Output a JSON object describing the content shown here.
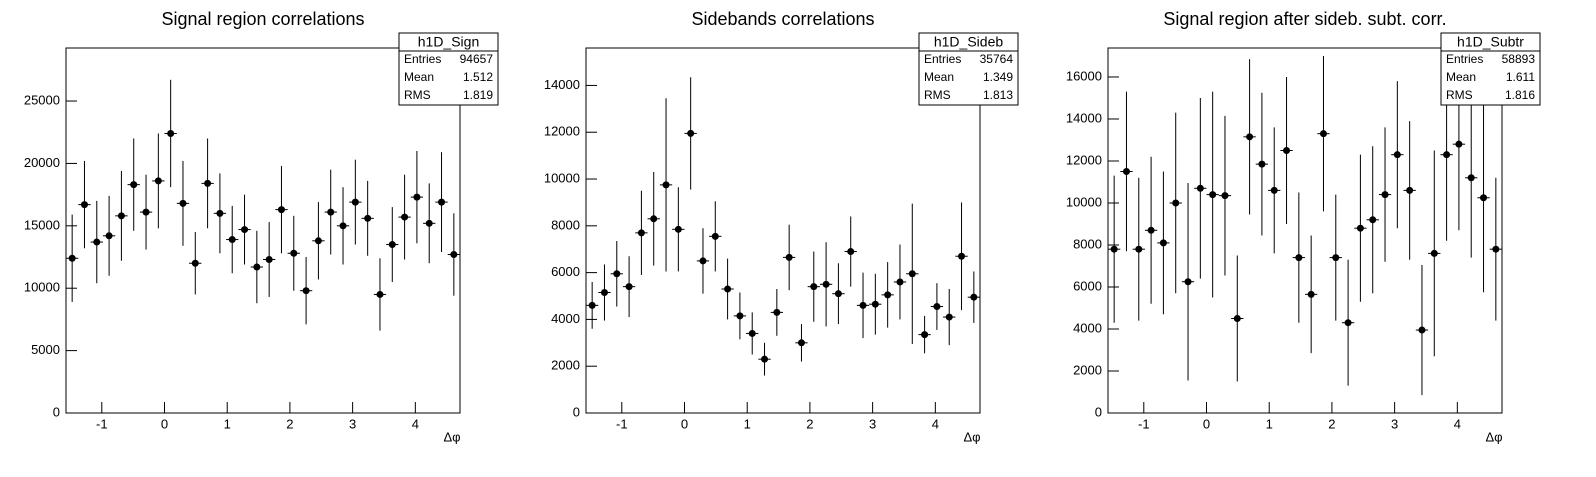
{
  "chart_data": [
    {
      "type": "errorbar",
      "title": "Signal region correlations",
      "x_label": "Δφ",
      "x": [
        -1.4726,
        -1.2763,
        -1.0799,
        -0.8836,
        -0.6872,
        -0.4909,
        -0.2945,
        -0.0982,
        0.0982,
        0.2945,
        0.4909,
        0.6872,
        0.8836,
        1.0799,
        1.2763,
        1.4726,
        1.669,
        1.8653,
        2.0617,
        2.258,
        2.4544,
        2.6507,
        2.8471,
        3.0434,
        3.2398,
        3.4361,
        3.6325,
        3.8288,
        4.0252,
        4.2215,
        4.4179,
        4.6142
      ],
      "values": [
        12400,
        16700,
        13700,
        14200,
        15800,
        18300,
        16100,
        18600,
        22400,
        16800,
        12000,
        18400,
        16000,
        13900,
        14700,
        11700,
        12300,
        16300,
        12800,
        9800,
        13800,
        16100,
        15000,
        16900,
        15600,
        9500,
        13500,
        15700,
        17300,
        15200,
        16900,
        12700
      ],
      "errors": [
        3500,
        3500,
        3300,
        3200,
        3600,
        3700,
        3000,
        3800,
        4300,
        3400,
        2500,
        3600,
        3200,
        2700,
        2800,
        2900,
        3000,
        3500,
        3000,
        2700,
        3100,
        3400,
        3100,
        3400,
        3000,
        2900,
        3000,
        3400,
        3700,
        3200,
        4000,
        3300
      ],
      "color": "#000000",
      "xlim": [
        -1.5708,
        4.7124
      ],
      "ylim": [
        0,
        29250
      ],
      "xticks": [
        -1,
        0,
        1,
        2,
        3,
        4
      ],
      "yticks": [
        0,
        5000,
        10000,
        15000,
        20000,
        25000
      ],
      "stats_box": {
        "title": "h1D_Sign",
        "rows": [
          [
            "Entries",
            "94657"
          ],
          [
            "Mean",
            "1.512"
          ],
          [
            "RMS",
            "1.819"
          ]
        ]
      }
    },
    {
      "type": "errorbar",
      "title": "Sidebands correlations",
      "x_label": "Δφ",
      "x": [
        -1.4726,
        -1.2763,
        -1.0799,
        -0.8836,
        -0.6872,
        -0.4909,
        -0.2945,
        -0.0982,
        0.0982,
        0.2945,
        0.4909,
        0.6872,
        0.8836,
        1.0799,
        1.2763,
        1.4726,
        1.669,
        1.8653,
        2.0617,
        2.258,
        2.4544,
        2.6507,
        2.8471,
        3.0434,
        3.2398,
        3.4361,
        3.6325,
        3.8288,
        4.0252,
        4.2215,
        4.4179,
        4.6142
      ],
      "values": [
        4600,
        5150,
        5950,
        5400,
        7700,
        8300,
        9750,
        7850,
        11950,
        6500,
        7550,
        5300,
        4150,
        3400,
        2300,
        4300,
        6650,
        3000,
        5400,
        5500,
        5100,
        6900,
        4600,
        4650,
        5050,
        5600,
        5950,
        3350,
        4550,
        4100,
        6700,
        4950
      ],
      "errors": [
        1000,
        1200,
        1400,
        1300,
        1800,
        2000,
        3700,
        1800,
        2400,
        1400,
        1500,
        1300,
        1000,
        900,
        700,
        1000,
        1400,
        800,
        1500,
        1800,
        1300,
        1500,
        1400,
        1300,
        1400,
        1600,
        3000,
        800,
        1000,
        1200,
        2300,
        1100
      ],
      "color": "#000000",
      "xlim": [
        -1.5708,
        4.7124
      ],
      "ylim": [
        0,
        15600
      ],
      "xticks": [
        -1,
        0,
        1,
        2,
        3,
        4
      ],
      "yticks": [
        0,
        2000,
        4000,
        6000,
        8000,
        10000,
        12000,
        14000
      ],
      "stats_box": {
        "title": "h1D_Sideb",
        "rows": [
          [
            "Entries",
            "35764"
          ],
          [
            "Mean",
            "1.349"
          ],
          [
            "RMS",
            "1.813"
          ]
        ]
      }
    },
    {
      "type": "errorbar",
      "title": "Signal region after sideb. subt. corr.",
      "x_label": "Δφ",
      "x": [
        -1.4726,
        -1.2763,
        -1.0799,
        -0.8836,
        -0.6872,
        -0.4909,
        -0.2945,
        -0.0982,
        0.0982,
        0.2945,
        0.4909,
        0.6872,
        0.8836,
        1.0799,
        1.2763,
        1.4726,
        1.669,
        1.8653,
        2.0617,
        2.258,
        2.4544,
        2.6507,
        2.8471,
        3.0434,
        3.2398,
        3.4361,
        3.6325,
        3.8288,
        4.0252,
        4.2215,
        4.4179,
        4.6142
      ],
      "values": [
        7800,
        11500,
        7800,
        8700,
        8100,
        10000,
        6250,
        10700,
        10400,
        10350,
        4500,
        13150,
        11850,
        10600,
        12500,
        7400,
        5650,
        13300,
        7400,
        4300,
        8800,
        9200,
        10400,
        12300,
        10600,
        3950,
        7600,
        12300,
        12800,
        11200,
        10250,
        7800
      ],
      "errors": [
        3500,
        3800,
        3400,
        3500,
        3400,
        4300,
        4700,
        4300,
        4900,
        3800,
        3000,
        3700,
        3400,
        3000,
        3500,
        3100,
        2800,
        3700,
        3000,
        3000,
        3500,
        3500,
        3200,
        3500,
        3300,
        3100,
        4900,
        4100,
        4100,
        3800,
        4500,
        3400
      ],
      "color": "#000000",
      "xlim": [
        -1.5708,
        4.7124
      ],
      "ylim": [
        0,
        17380
      ],
      "xticks": [
        -1,
        0,
        1,
        2,
        3,
        4
      ],
      "yticks": [
        0,
        2000,
        4000,
        6000,
        8000,
        10000,
        12000,
        14000,
        16000
      ],
      "stats_box": {
        "title": "h1D_Subtr",
        "rows": [
          [
            "Entries",
            "58893"
          ],
          [
            "Mean",
            "1.611"
          ],
          [
            "RMS",
            "1.816"
          ]
        ]
      }
    }
  ]
}
